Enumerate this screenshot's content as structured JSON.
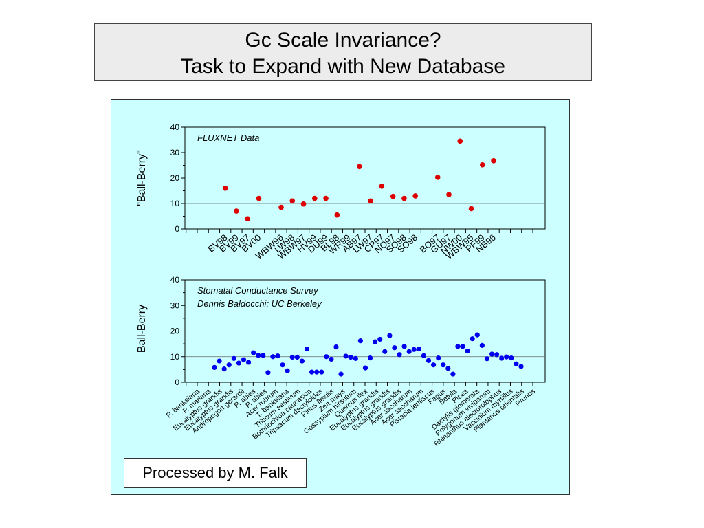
{
  "title": {
    "line1": "Gc Scale Invariance?",
    "line2": "Task to Expand with New Database"
  },
  "credit": "Processed by M. Falk",
  "colors": {
    "panel_bg": "#ccffff",
    "top_points": "#dd0000",
    "bottom_points": "#0000ee"
  },
  "chart_data": [
    {
      "type": "scatter",
      "annotation": "FLUXNET Data",
      "ylabel": "\"Ball-Berry\"",
      "xlabel": "",
      "ylim": [
        0,
        40
      ],
      "yticks": [
        0,
        10,
        20,
        30,
        40
      ],
      "reference_line": 10,
      "grid": false,
      "x_slots": 30,
      "categories": [
        "BV98",
        "BV99",
        "BV97",
        "BV00",
        "WBW96",
        "LW98",
        "WBW97",
        "HV99",
        "DU99",
        "BL98",
        "WR99",
        "AB97",
        "LW97",
        "CP97",
        "NO97",
        "SO98",
        "SO98",
        "BO97",
        "GU97",
        "NW00",
        "WBW95",
        "PF99",
        "NB96"
      ],
      "slots": [
        3,
        4,
        5,
        6,
        8,
        9,
        10,
        11,
        12,
        13,
        14,
        15,
        16,
        17,
        18,
        19,
        20,
        22,
        23,
        24,
        25,
        26,
        27
      ],
      "series": [
        {
          "values": [
            16,
            7,
            4,
            12,
            8.5,
            11,
            9.8,
            12,
            12,
            5.5,
            24.5,
            11,
            16.8,
            12.8,
            12,
            13,
            20.3,
            13.5,
            34.5,
            8,
            25.2,
            26.8
          ]
        }
      ],
      "point_slots": [
        3,
        4,
        5,
        6,
        8,
        9,
        10,
        11,
        12,
        13,
        15,
        16,
        17,
        18,
        19,
        20,
        22,
        23,
        24,
        25,
        26,
        27
      ]
    },
    {
      "type": "scatter",
      "annotation": [
        "Stomatal Conductance Survey",
        "Dennis Baldocchi; UC Berkeley"
      ],
      "ylabel": "Ball-Berry",
      "xlabel": "",
      "ylim": [
        0,
        40
      ],
      "yticks": [
        0,
        10,
        20,
        30,
        40
      ],
      "reference_line": 10,
      "grid": false,
      "x_slots": 30,
      "categories": [
        "P. banksiana",
        "P. mariana",
        "Eucalyptus grandis",
        "Eucalyptus grandis",
        "Andropogon gerardii",
        "P. abies",
        "P. abies",
        "Acer rubrum",
        "T. banksiana",
        "Triticum aestivum",
        "Bothriochloa caucasica",
        "Tripsacum dactyloides",
        "Pinus flexilis",
        "Zea mays",
        "Gossypium hirsutum",
        "Quercus ilex",
        "Eucalyptus grandis",
        "Eucalyptus grandis",
        "Eucalyptus grandis",
        "Acer saccharum",
        "Acer saccharum",
        "Pistacia lentiscus",
        "Fagus",
        "Betula",
        "Picea",
        "Dactylis glomerata",
        "Polygonum viviparum",
        "Rhinanthus alectorolophus",
        "Vaccinium myrtillus",
        "Plantanus orientalis",
        "Prunus"
      ],
      "label_slots": [
        1,
        2,
        3,
        4,
        5,
        6,
        7,
        8,
        9,
        10,
        11,
        12,
        13,
        14,
        15,
        16,
        17,
        18,
        19,
        20,
        21,
        22,
        23,
        24,
        25,
        26,
        27,
        28,
        29,
        30,
        31
      ],
      "series": [
        {
          "values": [
            5.8,
            8.3,
            5.2,
            6.8,
            9.3,
            7.5,
            8.8,
            7.8,
            11.5,
            10.5,
            10.5,
            3.8,
            10,
            10.3,
            6.8,
            4.5,
            9.8,
            9.8,
            8.3,
            13,
            4,
            4,
            4,
            10,
            9,
            13.8,
            3.2,
            10.2,
            9.8,
            9.3,
            16.2,
            5.6,
            9.5,
            15.8,
            16.8,
            12,
            18.2,
            13.5,
            10.8,
            14,
            12,
            12.8,
            13,
            10.4,
            8.5,
            6.8,
            9.5,
            6.8,
            5.4,
            3.2,
            14,
            14,
            12.2,
            17,
            18.5,
            14.4,
            9.2,
            11,
            10.8,
            9.4,
            9.9,
            9.5,
            7.2,
            6.2
          ]
        }
      ]
    }
  ]
}
